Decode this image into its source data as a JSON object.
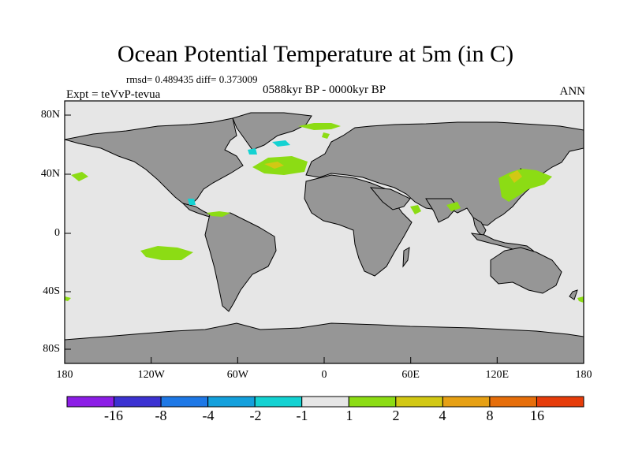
{
  "title": "Ocean Potential Temperature at 5m (in C)",
  "stats": "rmsd= 0.489435 diff= 0.373009",
  "experiment": "Expt = teVvP-tevua",
  "period": "0588kyr BP - 0000kyr BP",
  "season": "ANN",
  "lat_labels": [
    "80N",
    "40N",
    "0",
    "40S",
    "80S"
  ],
  "lon_labels": [
    "180",
    "120W",
    "60W",
    "0",
    "60E",
    "120E",
    "180"
  ],
  "colorbar": {
    "colors": [
      "#8c1ee6",
      "#3c32d2",
      "#1e78e6",
      "#14a0dc",
      "#14d2d2",
      "#e6e6e6",
      "#8cdc14",
      "#d2c814",
      "#e6a014",
      "#e66e0a",
      "#e63c0a"
    ],
    "labels": [
      "-16",
      "-8",
      "-4",
      "-2",
      "-1",
      "1",
      "2",
      "4",
      "8",
      "16"
    ]
  },
  "map_colors": {
    "ocean": "#e6e6e6",
    "land": "#969696"
  }
}
